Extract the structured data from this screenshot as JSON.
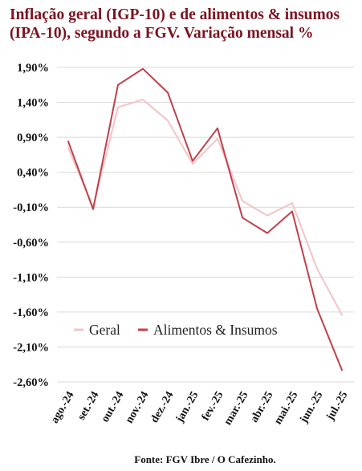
{
  "chart_data": {
    "type": "line",
    "title": "Inflação geral (IGP-10) e de alimentos & insumos (IPA-10), segundo a FGV. Variação mensal %",
    "categories": [
      "ago.-24",
      "set.-24",
      "out.-24",
      "nov.-24",
      "dez.-24",
      "jan.-25",
      "fev.-25",
      "mar.-25",
      "abr.-25",
      "mai.-25",
      "jun.-25",
      "jul.-25"
    ],
    "series": [
      {
        "name": "Geral",
        "color": "#f2c4c6",
        "values": [
          0.75,
          -0.1,
          1.33,
          1.44,
          1.14,
          0.52,
          0.88,
          -0.01,
          -0.22,
          -0.04,
          -0.98,
          -1.64
        ]
      },
      {
        "name": "Alimentos & Insumos",
        "color": "#c0404a",
        "values": [
          0.84,
          -0.13,
          1.65,
          1.88,
          1.54,
          0.56,
          1.03,
          -0.25,
          -0.47,
          -0.16,
          -1.55,
          -2.43
        ]
      }
    ],
    "y_ticks": [
      "1,90%",
      "1,40%",
      "0,90%",
      "0,40%",
      "-0,10%",
      "-0,60%",
      "-1,10%",
      "-1,60%",
      "-2,10%",
      "-2,60%"
    ],
    "y_tick_values": [
      1.9,
      1.4,
      0.9,
      0.4,
      -0.1,
      -0.6,
      -1.1,
      -1.6,
      -2.1,
      -2.6
    ],
    "ylim": [
      -2.6,
      1.9
    ],
    "grid": true,
    "legend_position": "lower-left"
  },
  "footer": "Fonte: FGV Ibre / O Cafezinho."
}
